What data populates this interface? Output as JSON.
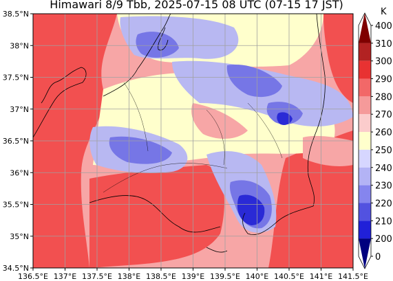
{
  "title": "Himawari 8/9 Tbb, 2025-07-15 08 UTC (07-15 17 JST)",
  "map": {
    "lon_range": [
      136.5,
      141.5
    ],
    "lat_range": [
      34.5,
      38.5
    ],
    "lon_ticks": [
      "136.5°E",
      "137°E",
      "137.5°E",
      "138°E",
      "138.5°E",
      "139°E",
      "139.5°E",
      "140°E",
      "140.5°E",
      "141°E",
      "141.5°E"
    ],
    "lat_ticks": [
      "38.5°N",
      "38°N",
      "37.5°N",
      "37°N",
      "36.5°N",
      "36°N",
      "35.5°N",
      "35°N",
      "34.5°N"
    ],
    "grid": true
  },
  "colorbar": {
    "unit": "K",
    "levels": [
      "400",
      "310",
      "300",
      "290",
      "280",
      "270",
      "260",
      "250",
      "240",
      "230",
      "220",
      "210",
      "200",
      "0"
    ],
    "colors": [
      "#7f0000",
      "#b22222",
      "#e83232",
      "#f26868",
      "#f59a9a",
      "#fbcccc",
      "#ffffcc",
      "#d6d6ff",
      "#b3b3f5",
      "#8585ee",
      "#5252e0",
      "#2020d8",
      "#00007f"
    ],
    "extend": "both"
  },
  "colors": {
    "warm": "#f25050",
    "mild": "#f7a6a6",
    "neutral": "#ffffcc",
    "cool": "#b8b8f2",
    "cold": "#7676e6",
    "coldest": "#2a2ad6",
    "grid": "#a0a0a0",
    "coast": "#000000"
  }
}
